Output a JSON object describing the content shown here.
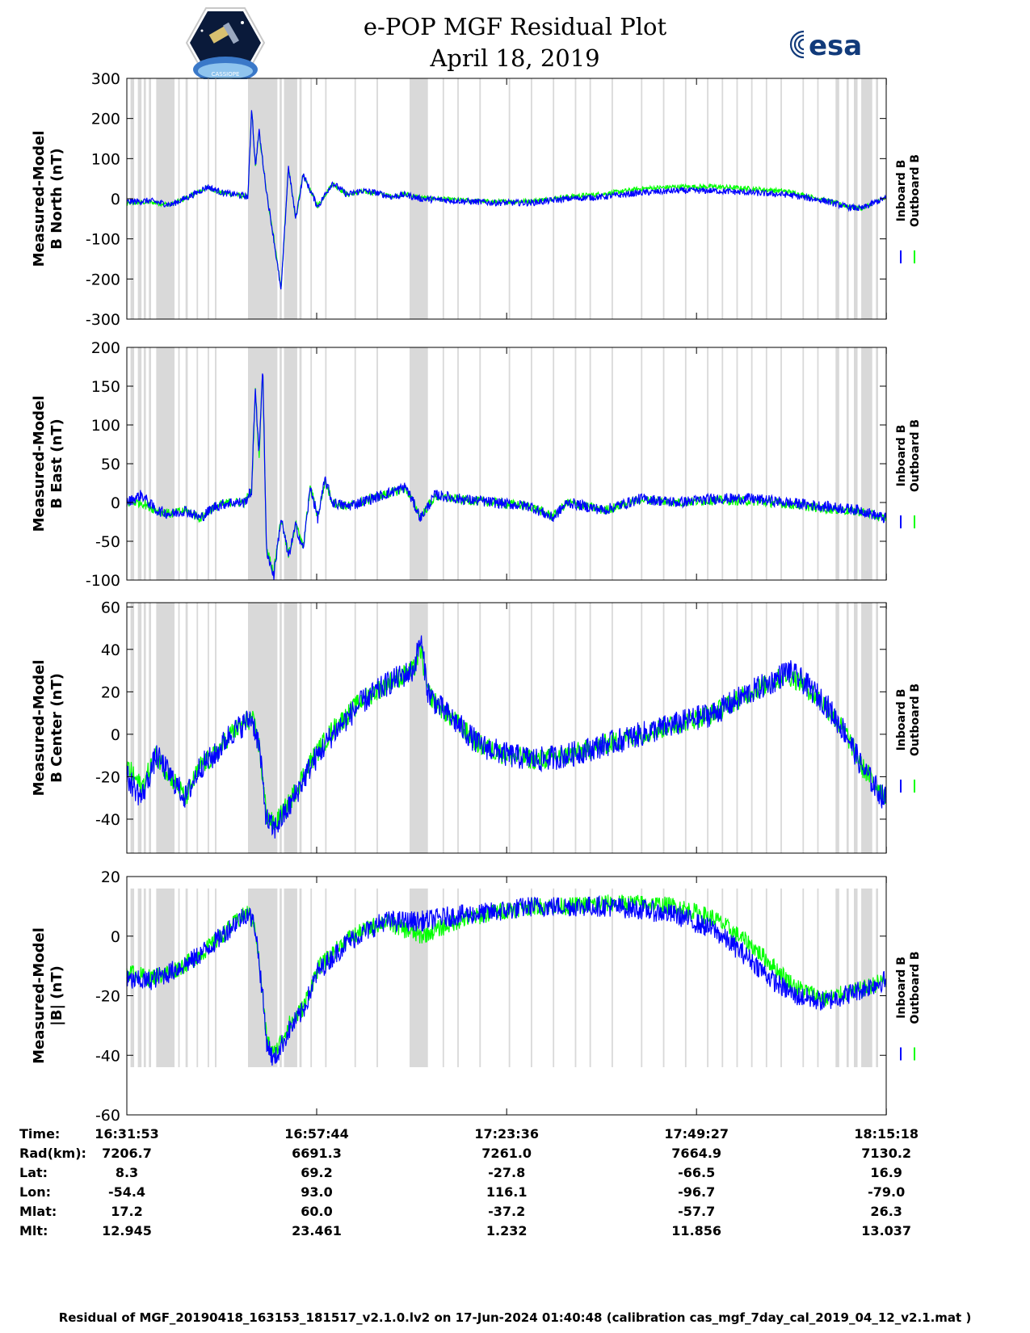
{
  "header": {
    "title_line1": "e-POP MGF Residual Plot",
    "title_line2": "April 18, 2019",
    "logo_left_text": "CASSIOPE",
    "logo_right_text": "esa"
  },
  "colors": {
    "inboard": "#0000ff",
    "outboard": "#00ff00",
    "gap_shading": "#d9d9d9"
  },
  "chart_data": [
    {
      "type": "line",
      "ylabel_line1": "Measured-Model",
      "ylabel_line2": "B North (nT)",
      "ylim": [
        -300,
        300
      ],
      "yticks": [
        "300",
        "200",
        "100",
        "0",
        "-100",
        "-200",
        "-300"
      ],
      "yticks_values": [
        300,
        200,
        100,
        0,
        -100,
        -200,
        -300
      ],
      "legend": [
        "Inboard B",
        "Outboard B"
      ],
      "x_minutes": [
        0,
        3,
        6,
        9,
        11,
        13,
        15,
        16.5,
        17,
        17.5,
        18,
        19,
        20,
        21,
        22,
        23,
        24,
        26,
        28,
        30,
        32,
        34,
        36,
        38,
        40,
        45,
        50,
        55,
        60,
        65,
        70,
        75,
        80,
        85,
        90,
        95,
        98,
        100,
        103
      ],
      "series": [
        {
          "name": "Inboard B",
          "values": [
            -8,
            -5,
            -15,
            10,
            30,
            15,
            10,
            5,
            230,
            80,
            170,
            20,
            -100,
            -230,
            80,
            -50,
            60,
            -20,
            40,
            10,
            20,
            15,
            5,
            10,
            0,
            -5,
            -10,
            -10,
            0,
            5,
            15,
            20,
            20,
            15,
            10,
            -5,
            -20,
            -25,
            0
          ],
          "noise": 8
        },
        {
          "name": "Outboard B",
          "values": [
            -12,
            -8,
            -15,
            10,
            28,
            14,
            10,
            5,
            225,
            78,
            165,
            18,
            -95,
            -225,
            78,
            -48,
            58,
            -18,
            38,
            10,
            18,
            14,
            6,
            12,
            2,
            -3,
            -8,
            -6,
            5,
            12,
            25,
            30,
            30,
            25,
            18,
            -3,
            -18,
            -24,
            0
          ],
          "noise": 6
        }
      ]
    },
    {
      "type": "line",
      "ylabel_line1": "Measured-Model",
      "ylabel_line2": "B East (nT)",
      "ylim": [
        -100,
        200
      ],
      "yticks": [
        "200",
        "150",
        "100",
        "50",
        "0",
        "-50",
        "-100"
      ],
      "yticks_values": [
        200,
        150,
        100,
        50,
        0,
        -50,
        -100
      ],
      "legend": [
        "Inboard B",
        "Outboard B"
      ],
      "x_minutes": [
        0,
        2,
        4,
        6,
        8,
        10,
        12,
        14,
        16,
        17,
        17.5,
        18,
        18.5,
        19,
        20,
        21,
        22,
        23,
        24,
        25,
        26,
        27,
        28,
        30,
        35,
        38,
        40,
        42,
        45,
        50,
        55,
        58,
        60,
        65,
        70,
        75,
        80,
        85,
        90,
        95,
        100,
        103
      ],
      "series": [
        {
          "name": "Inboard B",
          "values": [
            0,
            10,
            -10,
            -15,
            -10,
            -20,
            -5,
            0,
            0,
            15,
            150,
            60,
            180,
            -60,
            -95,
            -20,
            -70,
            -30,
            -60,
            20,
            -20,
            30,
            0,
            -5,
            10,
            20,
            -20,
            10,
            5,
            0,
            -5,
            -20,
            0,
            -10,
            5,
            0,
            5,
            5,
            0,
            -5,
            -10,
            -20
          ],
          "noise": 7
        },
        {
          "name": "Outboard B",
          "values": [
            0,
            0,
            -10,
            -15,
            -10,
            -20,
            -5,
            0,
            0,
            15,
            145,
            58,
            175,
            -58,
            -90,
            -20,
            -68,
            -28,
            -58,
            20,
            -18,
            28,
            0,
            -5,
            10,
            18,
            -18,
            8,
            4,
            0,
            -5,
            -18,
            0,
            -10,
            4,
            0,
            3,
            2,
            -2,
            -8,
            -12,
            -20
          ],
          "noise": 6
        }
      ]
    },
    {
      "type": "line",
      "ylabel_line1": "Measured-Model",
      "ylabel_line2": "B Center (nT)",
      "ylim": [
        -56,
        62
      ],
      "yticks": [
        "60",
        "40",
        "20",
        "0",
        "-20",
        "-40"
      ],
      "yticks_values": [
        60,
        40,
        20,
        0,
        -20,
        -40
      ],
      "legend": [
        "Inboard B",
        "Outboard B"
      ],
      "x_minutes": [
        0,
        2,
        4,
        6,
        8,
        10,
        12,
        14,
        16,
        17,
        18,
        19,
        20,
        22,
        25,
        28,
        32,
        36,
        39,
        40,
        41,
        42,
        45,
        48,
        52,
        56,
        60,
        65,
        70,
        75,
        80,
        85,
        88,
        90,
        92,
        95,
        98,
        100,
        103
      ],
      "series": [
        {
          "name": "Inboard B",
          "values": [
            -20,
            -30,
            -10,
            -20,
            -30,
            -15,
            -10,
            0,
            5,
            8,
            -5,
            -40,
            -45,
            -35,
            -15,
            0,
            15,
            25,
            30,
            45,
            20,
            15,
            5,
            -5,
            -10,
            -12,
            -10,
            -5,
            0,
            5,
            10,
            20,
            25,
            30,
            25,
            15,
            0,
            -15,
            -30
          ],
          "noise": 6
        },
        {
          "name": "Outboard B",
          "values": [
            -15,
            -25,
            -10,
            -20,
            -30,
            -15,
            -10,
            0,
            5,
            8,
            -5,
            -38,
            -43,
            -33,
            -13,
            2,
            16,
            25,
            30,
            40,
            20,
            15,
            5,
            -5,
            -10,
            -12,
            -10,
            -5,
            0,
            5,
            10,
            20,
            25,
            28,
            24,
            14,
            0,
            -15,
            -28
          ],
          "noise": 5
        }
      ]
    },
    {
      "type": "line",
      "ylabel_line1": "Measured-Model",
      "ylabel_line2": "|B| (nT)",
      "ylim": [
        -60,
        20
      ],
      "yticks": [
        "20",
        "0",
        "-20",
        "-40",
        "-60"
      ],
      "yticks_values": [
        20,
        0,
        -20,
        -40,
        -60
      ],
      "legend": [
        "Inboard B",
        "Outboard B"
      ],
      "x_minutes": [
        0,
        3,
        6,
        9,
        12,
        15,
        16.5,
        17.5,
        18.5,
        19,
        20,
        22,
        24,
        26,
        30,
        35,
        38,
        40,
        45,
        50,
        55,
        60,
        65,
        70,
        75,
        80,
        85,
        88,
        91,
        95,
        100,
        103
      ],
      "series": [
        {
          "name": "Inboard B",
          "values": [
            -15,
            -15,
            -12,
            -8,
            -2,
            5,
            8,
            3,
            -20,
            -35,
            -42,
            -32,
            -25,
            -12,
            -2,
            5,
            5,
            5,
            7,
            8,
            10,
            10,
            10,
            9,
            7,
            2,
            -8,
            -15,
            -20,
            -22,
            -18,
            -15
          ],
          "noise": 3.5
        },
        {
          "name": "Outboard B",
          "values": [
            -12,
            -14,
            -12,
            -8,
            -2,
            5,
            8,
            3,
            -20,
            -34,
            -40,
            -30,
            -24,
            -11,
            -1,
            5,
            2,
            0,
            5,
            8,
            10,
            10,
            11,
            11,
            10,
            6,
            -3,
            -10,
            -17,
            -21,
            -18,
            -15
          ],
          "noise": 3
        }
      ]
    }
  ],
  "gap_ranges_minutes": [
    [
      0.5,
      1
    ],
    [
      1.5,
      2
    ],
    [
      2.3,
      2.6
    ],
    [
      3,
      3.3
    ],
    [
      4,
      6.5
    ],
    [
      7,
      7.2
    ],
    [
      8,
      8.3
    ],
    [
      9.5,
      9.7
    ],
    [
      11,
      11.2
    ],
    [
      12,
      12.2
    ],
    [
      16.5,
      20.5
    ],
    [
      20.8,
      21.1
    ],
    [
      21.4,
      23.2
    ],
    [
      23.5,
      23.8
    ],
    [
      25,
      25.2
    ],
    [
      27,
      27.2
    ],
    [
      31,
      31.2
    ],
    [
      34,
      34.2
    ],
    [
      38.5,
      41
    ],
    [
      43,
      43.2
    ],
    [
      45,
      45.2
    ],
    [
      48,
      48.2
    ],
    [
      52,
      52.2
    ],
    [
      55,
      55.2
    ],
    [
      58,
      58.2
    ],
    [
      61,
      61.2
    ],
    [
      63,
      63.2
    ],
    [
      66,
      66.2
    ],
    [
      70,
      70.2
    ],
    [
      73,
      73.2
    ],
    [
      76,
      76.2
    ],
    [
      79,
      79.2
    ],
    [
      81,
      81.2
    ],
    [
      83,
      83.2
    ],
    [
      85,
      85.2
    ],
    [
      87,
      87.2
    ],
    [
      89,
      89.2
    ],
    [
      92,
      92.2
    ],
    [
      94,
      94.2
    ],
    [
      96.5,
      97
    ],
    [
      98,
      98.3
    ],
    [
      99,
      99.5
    ],
    [
      100,
      101.5
    ],
    [
      102,
      102.3
    ]
  ],
  "x_axis": {
    "total_minutes": 103.4,
    "tick_minutes": [
      0,
      25.85,
      51.72,
      77.57,
      103.42
    ]
  },
  "info_table": {
    "labels": [
      "Time:",
      "Rad(km):",
      "Lat:",
      "Lon:",
      "Mlat:",
      "Mlt:"
    ],
    "columns": [
      {
        "time": "16:31:53",
        "rad": "7206.7",
        "lat": "8.3",
        "lon": "-54.4",
        "mlat": "17.2",
        "mlt": "12.945"
      },
      {
        "time": "16:57:44",
        "rad": "6691.3",
        "lat": "69.2",
        "lon": "93.0",
        "mlat": "60.0",
        "mlt": "23.461"
      },
      {
        "time": "17:23:36",
        "rad": "7261.0",
        "lat": "-27.8",
        "lon": "116.1",
        "mlat": "-37.2",
        "mlt": "1.232"
      },
      {
        "time": "17:49:27",
        "rad": "7664.9",
        "lat": "-66.5",
        "lon": "-96.7",
        "mlat": "-57.7",
        "mlt": "11.856"
      },
      {
        "time": "18:15:18",
        "rad": "7130.2",
        "lat": "16.9",
        "lon": "-79.0",
        "mlat": "26.3",
        "mlt": "13.037"
      }
    ]
  },
  "footer": "Residual of MGF_20190418_163153_181517_v2.1.0.lv2 on 17-Jun-2024 01:40:48 (calibration cas_mgf_7day_cal_2019_04_12_v2.1.mat )"
}
